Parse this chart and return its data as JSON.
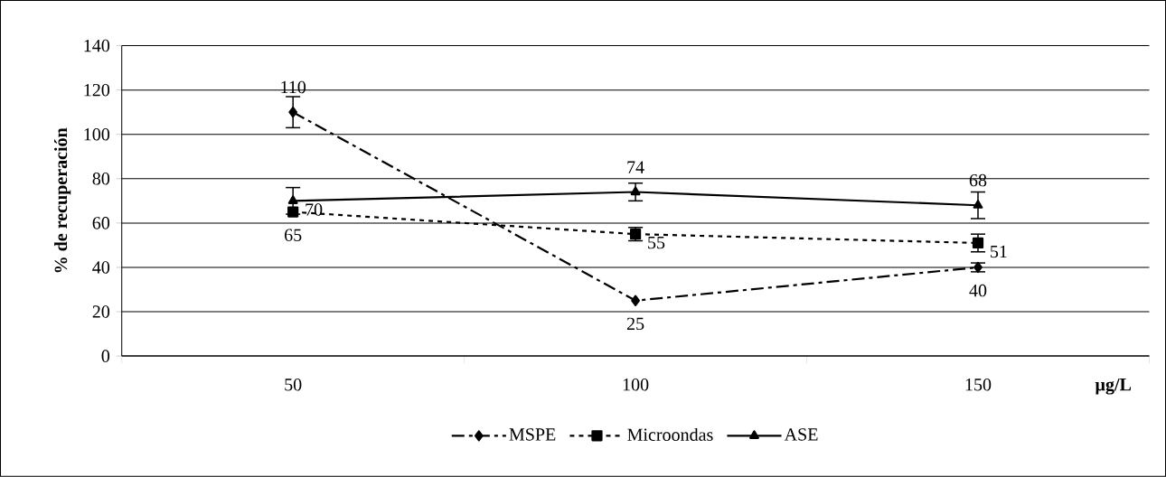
{
  "chart_data": {
    "type": "line",
    "ylabel": "% de recuperación",
    "xlabel": "µg/L",
    "categories": [
      "50",
      "100",
      "150"
    ],
    "series": [
      {
        "name": "MSPE",
        "color": "#000000",
        "marker": "diamond",
        "line_style": "dashed",
        "values": [
          110,
          25,
          40
        ],
        "errors": [
          7,
          null,
          2
        ]
      },
      {
        "name": "Microondas",
        "color": "#000000",
        "marker": "square",
        "line_style": "dotted",
        "values": [
          65,
          55,
          51
        ],
        "errors": [
          null,
          3,
          4
        ]
      },
      {
        "name": "ASE",
        "color": "#000000",
        "marker": "triangle",
        "line_style": "solid",
        "values": [
          70,
          74,
          68
        ],
        "errors": [
          6,
          4,
          6
        ]
      }
    ],
    "ylim": [
      0,
      140
    ],
    "yticks": [
      0,
      20,
      40,
      60,
      80,
      100,
      120,
      140
    ],
    "grid": "y",
    "legend": "bottom",
    "data_labels": true
  }
}
